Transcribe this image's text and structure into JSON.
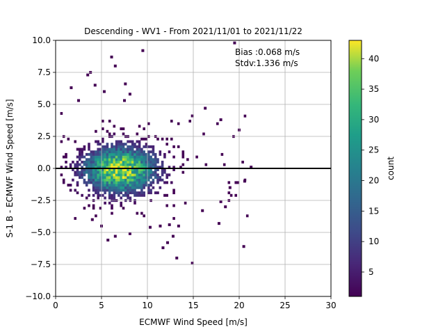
{
  "chart_data": {
    "type": "heatmap",
    "title": "Descending - WV1 - From 2021/11/01 to 2021/11/22",
    "xlabel": "ECMWF Wind Speed [m/s]",
    "ylabel": "S-1 B - ECMWF Wind Speed [m/s]",
    "xlim": [
      0,
      30
    ],
    "ylim": [
      -10,
      10
    ],
    "xticks": [
      0,
      5,
      10,
      15,
      20,
      25,
      30
    ],
    "yticks": [
      -10.0,
      -7.5,
      -5.0,
      -2.5,
      0.0,
      2.5,
      5.0,
      7.5,
      10.0
    ],
    "ytick_labels": [
      "−10.0",
      "−7.5",
      "−5.0",
      "−2.5",
      "0.0",
      "2.5",
      "5.0",
      "7.5",
      "10.0"
    ],
    "grid": true,
    "reference_line_y": 0,
    "colormap": "viridis",
    "colorbar": {
      "label": "count",
      "range": [
        1,
        43
      ],
      "ticks": [
        5,
        10,
        15,
        20,
        25,
        30,
        35,
        40
      ]
    },
    "annotation": [
      "Bias :0.068 m/s",
      "Stdv:1.336 m/s"
    ],
    "bin_size": {
      "x": 0.25,
      "y": 0.2
    },
    "density_center": {
      "x": 7,
      "y": -0.1
    },
    "outlier_points": [
      {
        "x": 19.5,
        "y": 9.8
      },
      {
        "x": 9.5,
        "y": 9.2
      },
      {
        "x": 6.1,
        "y": 8.7
      },
      {
        "x": 6.5,
        "y": 8.0
      },
      {
        "x": 3.8,
        "y": 7.5
      },
      {
        "x": 3.5,
        "y": 7.3
      },
      {
        "x": 4.3,
        "y": 6.5
      },
      {
        "x": 1.7,
        "y": 6.3
      },
      {
        "x": 7.6,
        "y": 6.6
      },
      {
        "x": 5.3,
        "y": 6.0
      },
      {
        "x": 7.5,
        "y": 5.3
      },
      {
        "x": 8.1,
        "y": 5.8
      },
      {
        "x": 2.5,
        "y": 5.3
      },
      {
        "x": 16.3,
        "y": 4.7
      },
      {
        "x": 14.9,
        "y": 4.1
      },
      {
        "x": 20.0,
        "y": 3.0
      },
      {
        "x": 18.0,
        "y": 3.8
      },
      {
        "x": 21.3,
        "y": 0.1
      },
      {
        "x": 20.6,
        "y": -1.0
      },
      {
        "x": 19.0,
        "y": -1.5
      },
      {
        "x": 18.0,
        "y": -2.6
      },
      {
        "x": 18.5,
        "y": -3.0
      },
      {
        "x": 17.8,
        "y": -4.3
      },
      {
        "x": 16.0,
        "y": -3.3
      },
      {
        "x": 13.4,
        "y": -4.5
      },
      {
        "x": 12.4,
        "y": -4.4
      },
      {
        "x": 11.4,
        "y": -4.5
      },
      {
        "x": 10.3,
        "y": -4.6
      },
      {
        "x": 8.1,
        "y": -5.1
      },
      {
        "x": 6.5,
        "y": -5.3
      },
      {
        "x": 5.0,
        "y": -4.5
      },
      {
        "x": 5.7,
        "y": -5.6
      },
      {
        "x": 4.0,
        "y": -4.0
      },
      {
        "x": 12.2,
        "y": -5.8
      },
      {
        "x": 12.8,
        "y": -5.3
      },
      {
        "x": 11.7,
        "y": -6.2
      },
      {
        "x": 13.2,
        "y": -7.0
      },
      {
        "x": 14.9,
        "y": -7.4
      },
      {
        "x": 20.5,
        "y": -6.1
      }
    ]
  }
}
